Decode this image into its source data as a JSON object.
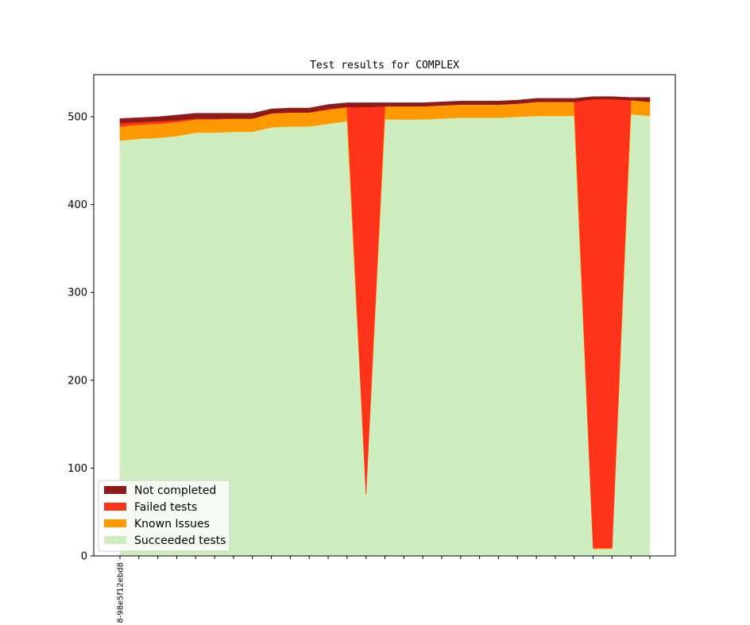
{
  "chart_data": {
    "type": "area",
    "stacked": true,
    "title": "Test results for COMPLEX",
    "xlabel": "",
    "ylabel": "",
    "x_tick_labels": [
      "8-98e5f12ebd8"
    ],
    "x_count": 29,
    "ylim": [
      0,
      548
    ],
    "yticks": [
      0,
      100,
      200,
      300,
      400,
      500
    ],
    "grid": false,
    "legend_position": "lower-left",
    "series": [
      {
        "name": "Succeeded tests",
        "color": "#cfeec0",
        "values": [
          473,
          475,
          476,
          478,
          482,
          482,
          483,
          483,
          488,
          489,
          489,
          492,
          495,
          70,
          497,
          497,
          497,
          498,
          499,
          499,
          499,
          500,
          501,
          501,
          501,
          8,
          8,
          503,
          501
        ]
      },
      {
        "name": "Known Issues",
        "color": "#ff9900",
        "values": [
          16,
          16,
          16,
          16,
          15,
          15,
          15,
          15,
          16,
          16,
          16,
          16,
          16,
          0,
          15,
          15,
          15,
          15,
          15,
          15,
          15,
          15,
          16,
          16,
          16,
          1,
          1,
          16,
          16
        ]
      },
      {
        "name": "Failed tests",
        "color": "#ff331a",
        "values": [
          4,
          3,
          3,
          2,
          1,
          1,
          0,
          0,
          0,
          0,
          0,
          1,
          0,
          441,
          0,
          0,
          0,
          0,
          0,
          0,
          0,
          0,
          0,
          0,
          0,
          511,
          511,
          0,
          0
        ]
      },
      {
        "name": "Not completed",
        "color": "#8e1a1a",
        "values": [
          5,
          5,
          5,
          6,
          6,
          6,
          6,
          6,
          5,
          5,
          5,
          5,
          5,
          5,
          4,
          4,
          4,
          4,
          4,
          4,
          4,
          4,
          4,
          4,
          4,
          3,
          3,
          3,
          5
        ]
      }
    ],
    "legend_order": [
      "Not completed",
      "Failed tests",
      "Known Issues",
      "Succeeded tests"
    ]
  }
}
